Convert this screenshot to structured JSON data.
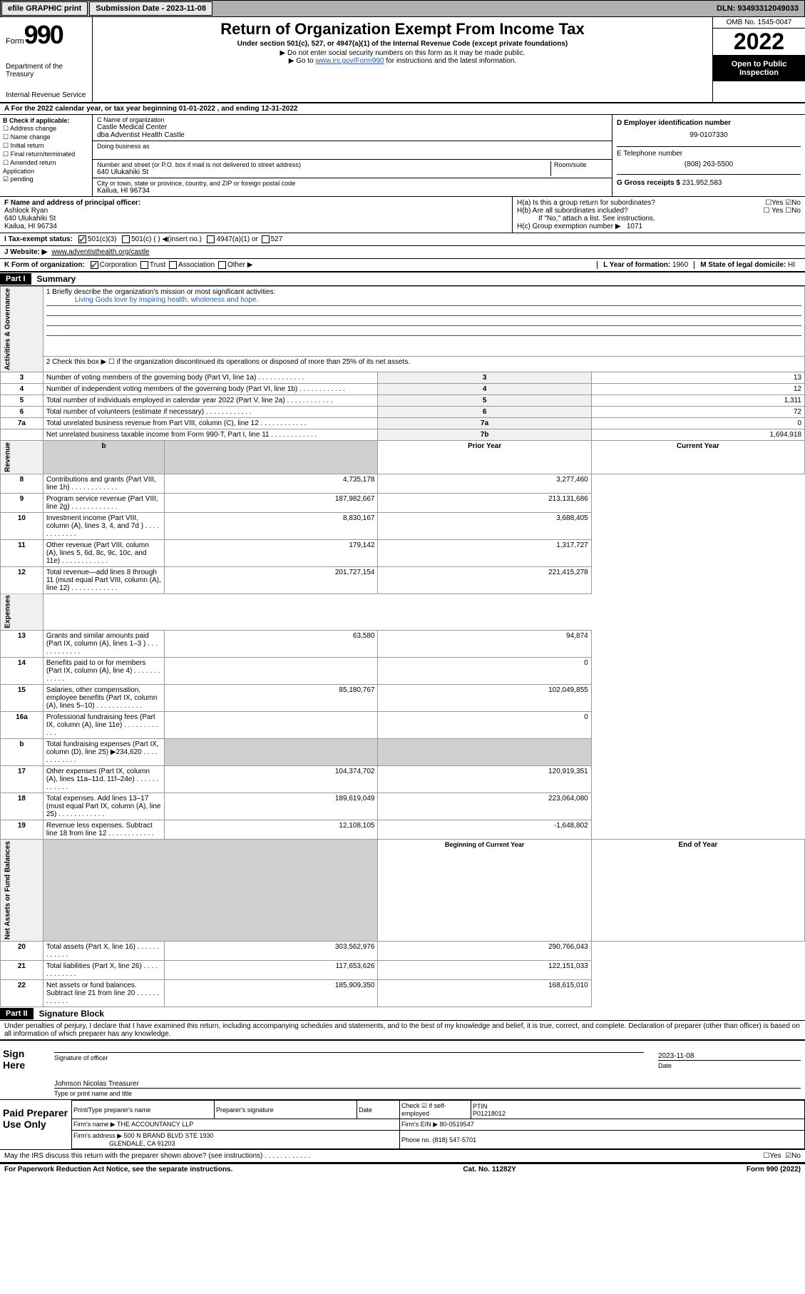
{
  "topbar": {
    "efile": "efile GRAPHIC print",
    "subdate_label": "Submission Date - 2023-11-08",
    "dln": "DLN: 93493312049033"
  },
  "header": {
    "form_word": "Form",
    "form_num": "990",
    "dept": "Department of the Treasury",
    "irs": "Internal Revenue Service",
    "title": "Return of Organization Exempt From Income Tax",
    "sub1": "Under section 501(c), 527, or 4947(a)(1) of the Internal Revenue Code (except private foundations)",
    "sub2": "▶ Do not enter social security numbers on this form as it may be made public.",
    "sub3_pre": "▶ Go to ",
    "sub3_link": "www.irs.gov/Form990",
    "sub3_post": " for instructions and the latest information.",
    "omb": "OMB No. 1545-0047",
    "year": "2022",
    "inspect1": "Open to Public",
    "inspect2": "Inspection"
  },
  "A": {
    "line": "A For the 2022 calendar year, or tax year beginning 01-01-2022    , and ending 12-31-2022"
  },
  "B": {
    "head": "B Check if applicable:",
    "items": [
      "☐ Address change",
      "☐ Name change",
      "☐ Initial return",
      "☐ Final return/terminated",
      "☐ Amended return",
      "   Application",
      "☑ pending"
    ]
  },
  "C": {
    "name_label": "C Name of organization",
    "name1": "Castle Medical Center",
    "name2": "dba Adventist Health Castle",
    "dba_label": "Doing business as",
    "street_label": "Number and street (or P.O. box if mail is not delivered to street address)",
    "room_label": "Room/suite",
    "street": "640 Ulukahiki St",
    "city_label": "City or town, state or province, country, and ZIP or foreign postal code",
    "city": "Kailua, HI  96734"
  },
  "D": {
    "label": "D Employer identification number",
    "val": "99-0107330"
  },
  "E": {
    "label": "E Telephone number",
    "val": "(808) 263-5500"
  },
  "G": {
    "label": "G Gross receipts $",
    "val": "231,952,583"
  },
  "F": {
    "label": "F  Name and address of principal officer:",
    "name": "Ashlock Ryan",
    "addr1": "640 Ulukahiki St",
    "addr2": "Kailua, HI  96734"
  },
  "H": {
    "a": "H(a)  Is this a group return for subordinates?",
    "a_yes": "☐Yes",
    "a_no": "☑No",
    "b": "H(b)  Are all subordinates included?",
    "b_yes": "☐ Yes",
    "b_no": "☐No",
    "b_note": "If \"No,\" attach a list. See instructions.",
    "c": "H(c)  Group exemption number ▶",
    "c_val": "1071"
  },
  "I": {
    "label": "I     Tax-exempt status:",
    "opt1": "501(c)(3)",
    "opt2": "501(c) (  ) ◀(insert no.)",
    "opt3": "4947(a)(1) or",
    "opt4": "527"
  },
  "J": {
    "label": "J    Website: ▶",
    "val": "www.adventisthealth.org/castle"
  },
  "K": {
    "label": "K Form of organization:",
    "opts": [
      "Corporation",
      "Trust",
      "Association",
      "Other ▶"
    ]
  },
  "L": {
    "label": "L Year of formation:",
    "val": "1960"
  },
  "M": {
    "label": "M State of legal domicile:",
    "val": "HI"
  },
  "part1": {
    "num": "Part I",
    "title": "Summary",
    "mission_q": "1   Briefly describe the organization's mission or most significant activities:",
    "mission": "Living Gods love by inspiring health, wholeness and hope.",
    "line2": "2   Check this box ▶ ☐  if the organization discontinued its operations or disposed of more than 25% of its net assets.",
    "gov_label": "Activities & Governance",
    "rev_label": "Revenue",
    "exp_label": "Expenses",
    "net_label": "Net Assets or Fund Balances",
    "rows_gov": [
      {
        "n": "3",
        "t": "Number of voting members of the governing body (Part VI, line 1a)",
        "a": "3",
        "v": "13"
      },
      {
        "n": "4",
        "t": "Number of independent voting members of the governing body (Part VI, line 1b)",
        "a": "4",
        "v": "12"
      },
      {
        "n": "5",
        "t": "Total number of individuals employed in calendar year 2022 (Part V, line 2a)",
        "a": "5",
        "v": "1,311"
      },
      {
        "n": "6",
        "t": "Total number of volunteers (estimate if necessary)",
        "a": "6",
        "v": "72"
      },
      {
        "n": "7a",
        "t": "Total unrelated business revenue from Part VIII, column (C), line 12",
        "a": "7a",
        "v": "0"
      },
      {
        "n": "",
        "t": "Net unrelated business taxable income from Form 990-T, Part I, line 11",
        "a": "7b",
        "v": "1,694,918"
      }
    ],
    "hdr_prior": "Prior Year",
    "hdr_curr": "Current Year",
    "rows_rev": [
      {
        "n": "8",
        "t": "Contributions and grants (Part VIII, line 1h)",
        "p": "4,735,178",
        "c": "3,277,460"
      },
      {
        "n": "9",
        "t": "Program service revenue (Part VIII, line 2g)",
        "p": "187,982,667",
        "c": "213,131,686"
      },
      {
        "n": "10",
        "t": "Investment income (Part VIII, column (A), lines 3, 4, and 7d )",
        "p": "8,830,167",
        "c": "3,688,405"
      },
      {
        "n": "11",
        "t": "Other revenue (Part VIII, column (A), lines 5, 6d, 8c, 9c, 10c, and 11e)",
        "p": "179,142",
        "c": "1,317,727"
      },
      {
        "n": "12",
        "t": "Total revenue—add lines 8 through 11 (must equal Part VIII, column (A), line 12)",
        "p": "201,727,154",
        "c": "221,415,278"
      }
    ],
    "rows_exp": [
      {
        "n": "13",
        "t": "Grants and similar amounts paid (Part IX, column (A), lines 1–3 )",
        "p": "63,580",
        "c": "94,874"
      },
      {
        "n": "14",
        "t": "Benefits paid to or for members (Part IX, column (A), line 4)",
        "p": "",
        "c": "0"
      },
      {
        "n": "15",
        "t": "Salaries, other compensation, employee benefits (Part IX, column (A), lines 5–10)",
        "p": "85,180,767",
        "c": "102,049,855"
      },
      {
        "n": "16a",
        "t": "Professional fundraising fees (Part IX, column (A), line 11e)",
        "p": "",
        "c": "0"
      },
      {
        "n": "b",
        "t": "Total fundraising expenses (Part IX, column (D), line 25) ▶234,620",
        "p": "__SHADED__",
        "c": "__SHADED__"
      },
      {
        "n": "17",
        "t": "Other expenses (Part IX, column (A), lines 11a–11d, 11f–24e)",
        "p": "104,374,702",
        "c": "120,919,351"
      },
      {
        "n": "18",
        "t": "Total expenses. Add lines 13–17 (must equal Part IX, column (A), line 25)",
        "p": "189,619,049",
        "c": "223,064,080"
      },
      {
        "n": "19",
        "t": "Revenue less expenses. Subtract line 18 from line 12",
        "p": "12,108,105",
        "c": "-1,648,802"
      }
    ],
    "hdr_begin": "Beginning of Current Year",
    "hdr_end": "End of Year",
    "rows_net": [
      {
        "n": "20",
        "t": "Total assets (Part X, line 16)",
        "p": "303,562,976",
        "c": "290,766,043"
      },
      {
        "n": "21",
        "t": "Total liabilities (Part X, line 26)",
        "p": "117,653,626",
        "c": "122,151,033"
      },
      {
        "n": "22",
        "t": "Net assets or fund balances. Subtract line 21 from line 20",
        "p": "185,909,350",
        "c": "168,615,010"
      }
    ]
  },
  "part2": {
    "num": "Part II",
    "title": "Signature Block",
    "perjury": "Under penalties of perjury, I declare that I have examined this return, including accompanying schedules and statements, and to the best of my knowledge and belief, it is true, correct, and complete. Declaration of preparer (other than officer) is based on all information of which preparer has any knowledge.",
    "sign_here": "Sign Here",
    "sig_officer": "Signature of officer",
    "sig_date": "2023-11-08",
    "date_lbl": "Date",
    "officer_name": "Johnson Nicolas Treasurer",
    "officer_lbl": "Type or print name and title",
    "paid": "Paid Preparer Use Only",
    "prep_name_lbl": "Print/Type preparer's name",
    "prep_sig_lbl": "Preparer's signature",
    "prep_date_lbl": "Date",
    "check_lbl": "Check ☑ if self-employed",
    "ptin_lbl": "PTIN",
    "ptin": "P01218012",
    "firm_name_lbl": "Firm's name    ▶",
    "firm_name": "THE ACCOUNTANCY LLP",
    "firm_ein_lbl": "Firm's EIN ▶",
    "firm_ein": "80-0519547",
    "firm_addr_lbl": "Firm's address ▶",
    "firm_addr1": "500 N BRAND BLVD STE 1930",
    "firm_addr2": "GLENDALE, CA  91203",
    "phone_lbl": "Phone no.",
    "phone": "(818) 547-5701",
    "discuss": "May the IRS discuss this return with the preparer shown above? (see instructions)",
    "discuss_yes": "☐Yes",
    "discuss_no": "☑No"
  },
  "footer": {
    "left": "For Paperwork Reduction Act Notice, see the separate instructions.",
    "mid": "Cat. No. 11282Y",
    "right": "Form 990 (2022)"
  }
}
